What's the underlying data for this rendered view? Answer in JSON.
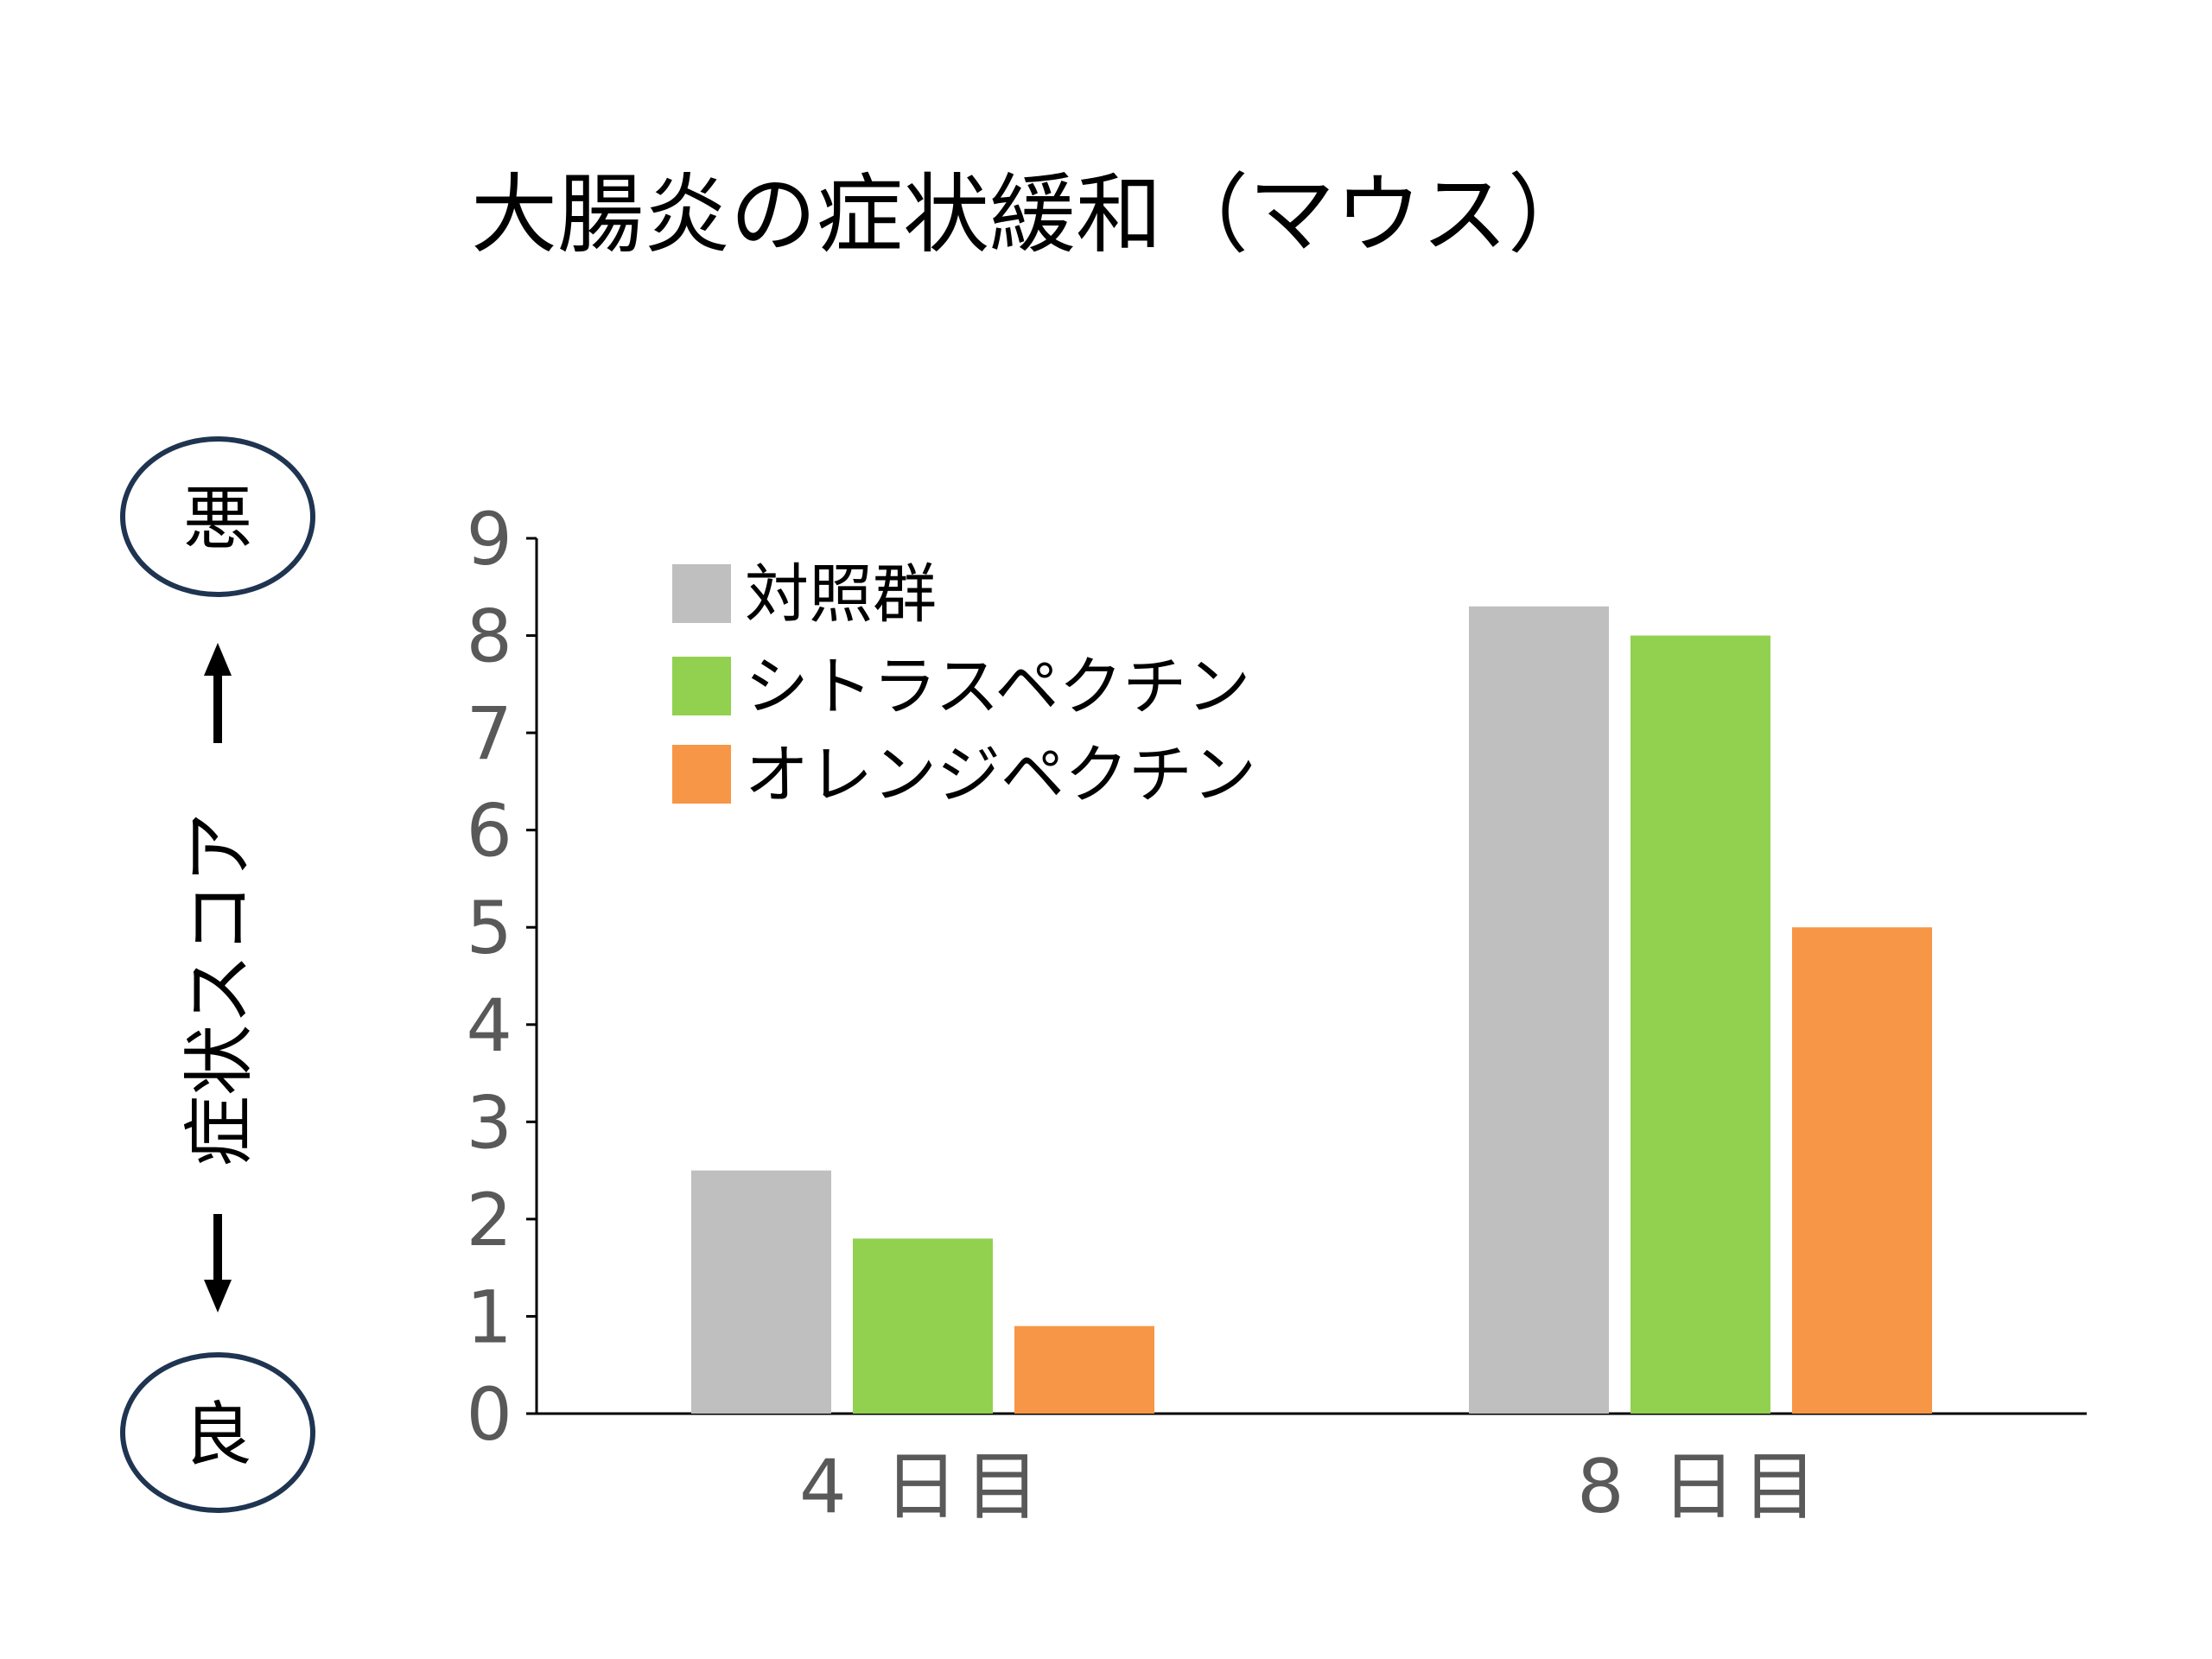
{
  "chart_data": {
    "type": "bar",
    "title": "大腸炎の症状緩和（マウス）",
    "ylabel": "症状スコア",
    "xlabel": "",
    "ylim": [
      0,
      9
    ],
    "yticks": [
      "0",
      "1",
      "2",
      "3",
      "4",
      "5",
      "6",
      "7",
      "8",
      "9"
    ],
    "categories": [
      "4 日目",
      "8 日目"
    ],
    "series": [
      {
        "name": "対照群",
        "values": [
          2.5,
          8.3
        ],
        "color": "#bfbfbf"
      },
      {
        "name": "シトラスペクチン",
        "values": [
          1.8,
          8.0
        ],
        "color": "#92d050"
      },
      {
        "name": "オレンジペクチン",
        "values": [
          0.9,
          5.0
        ],
        "color": "#f79646"
      }
    ],
    "legend_position": "top-left",
    "grid": false
  },
  "scale_indicator": {
    "top_label": "悪",
    "bottom_label": "良",
    "up_arrow_icon": "up-arrow-icon",
    "down_arrow_icon": "down-arrow-icon"
  },
  "colors": {
    "axis": "#000000",
    "tick_text": "#595959",
    "circle_border": "#1f3450"
  }
}
